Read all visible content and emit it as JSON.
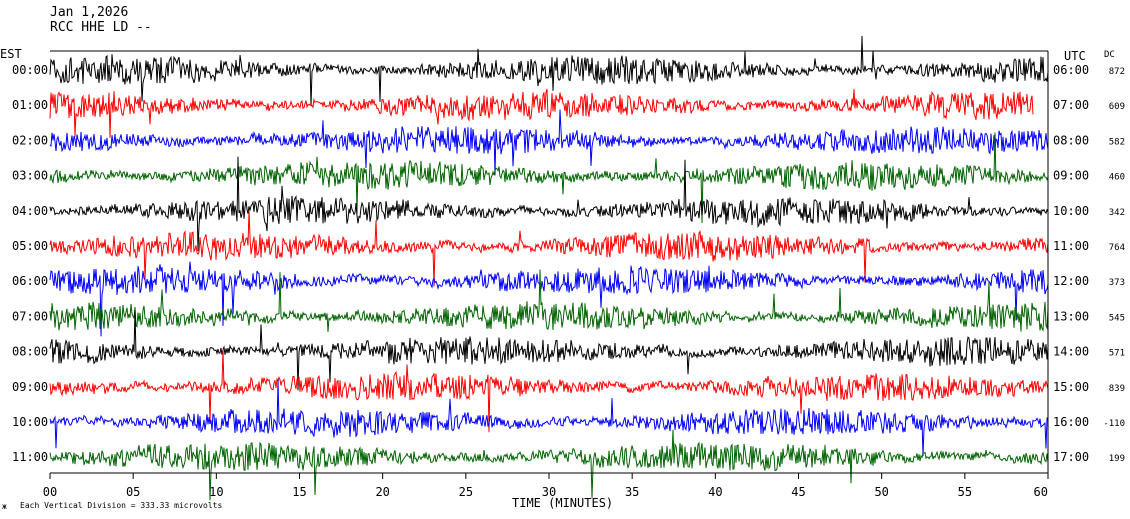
{
  "header": {
    "date": "Jan 1,2026",
    "station": "RCC HHE LD --",
    "line3": "",
    "line3_note": "third header line partially obscured by traces"
  },
  "left_axis_title": "EST",
  "right_axis_title": "UTC",
  "dc_title": "DC",
  "footer_note": "Each Vertical Division =  333.33 microvolts",
  "colors": [
    "#000000",
    "#ff0000",
    "#0000ff",
    "#006400"
  ],
  "chart_data": {
    "type": "line",
    "xlabel": "TIME (MINUTES)",
    "xlim": [
      0,
      60
    ],
    "x_ticks": [
      "00",
      "05",
      "10",
      "15",
      "20",
      "25",
      "30",
      "35",
      "40",
      "45",
      "50",
      "55",
      "60"
    ],
    "rows": [
      {
        "est": "00:00",
        "utc": "06:00",
        "dc": "872"
      },
      {
        "est": "01:00",
        "utc": "07:00",
        "dc": "609"
      },
      {
        "est": "02:00",
        "utc": "08:00",
        "dc": "582"
      },
      {
        "est": "03:00",
        "utc": "09:00",
        "dc": "460"
      },
      {
        "est": "04:00",
        "utc": "10:00",
        "dc": "342"
      },
      {
        "est": "05:00",
        "utc": "11:00",
        "dc": "764"
      },
      {
        "est": "06:00",
        "utc": "12:00",
        "dc": "373"
      },
      {
        "est": "07:00",
        "utc": "13:00",
        "dc": "545"
      },
      {
        "est": "08:00",
        "utc": "14:00",
        "dc": "571"
      },
      {
        "est": "09:00",
        "utc": "15:00",
        "dc": "839"
      },
      {
        "est": "10:00",
        "utc": "16:00",
        "dc": "-110"
      },
      {
        "est": "11:00",
        "utc": "17:00",
        "dc": "199"
      }
    ]
  }
}
